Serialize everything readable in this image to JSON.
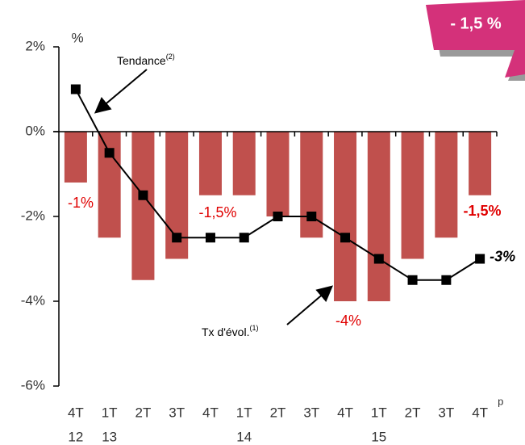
{
  "chart_data": {
    "type": "bar+line",
    "banner": "- 1,5 %",
    "y_unit": "%",
    "categories": [
      "4T",
      "1T",
      "2T",
      "3T",
      "4T",
      "1T",
      "2T",
      "3T",
      "4T",
      "1T",
      "2T",
      "3T",
      "4T"
    ],
    "years": [
      "12",
      "13",
      null,
      null,
      null,
      "14",
      null,
      null,
      null,
      "15",
      null,
      null,
      null
    ],
    "last_note": "p",
    "ylim": [
      -6,
      2
    ],
    "yticks": [
      {
        "value": 2,
        "label": "2%"
      },
      {
        "value": 0,
        "label": "0%"
      },
      {
        "value": -2,
        "label": "-2%"
      },
      {
        "value": -4,
        "label": "-4%"
      },
      {
        "value": -6,
        "label": "-6%"
      }
    ],
    "series": [
      {
        "name": "Tx d'évol.",
        "note": "(1)",
        "kind": "bar",
        "color": "#c0504d",
        "values": [
          -1.2,
          -2.5,
          -3.5,
          -3,
          -1.5,
          -1.5,
          -2,
          -2.5,
          -4,
          -4,
          -3,
          -2.5,
          -1.5
        ],
        "value_labels": [
          "-1%",
          null,
          null,
          null,
          "-1,5%",
          null,
          null,
          null,
          "-4%",
          null,
          null,
          null,
          "-1,5%"
        ]
      },
      {
        "name": "Tendance",
        "note": "(2)",
        "kind": "line",
        "color": "#000000",
        "values": [
          1,
          -0.5,
          -1.5,
          -2.5,
          -2.5,
          -2.5,
          -2,
          -2,
          -2.5,
          -3,
          -3.5,
          -3.5,
          -3
        ],
        "value_labels": [
          null,
          null,
          null,
          null,
          null,
          null,
          null,
          null,
          null,
          null,
          null,
          null,
          "-3%"
        ]
      }
    ]
  }
}
